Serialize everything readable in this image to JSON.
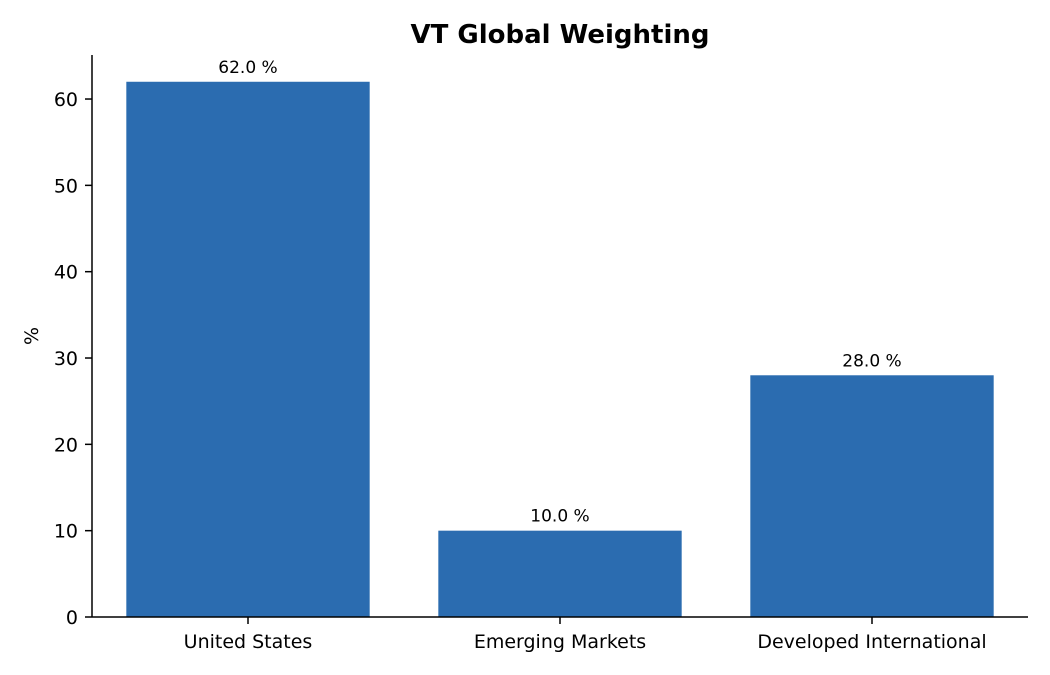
{
  "chart_data": {
    "type": "bar",
    "title": "VT Global Weighting",
    "xlabel": "",
    "ylabel": "%",
    "categories": [
      "United States",
      "Emerging Markets",
      "Developed International"
    ],
    "values": [
      62.0,
      10.0,
      28.0
    ],
    "data_labels": [
      "62.0 %",
      "10.0 %",
      "28.0 %"
    ],
    "y_ticks": [
      0,
      10,
      20,
      30,
      40,
      50,
      60
    ],
    "ylim": [
      0,
      65.1
    ],
    "bar_color": "#2b6cb0",
    "grid": false,
    "legend": "none"
  }
}
